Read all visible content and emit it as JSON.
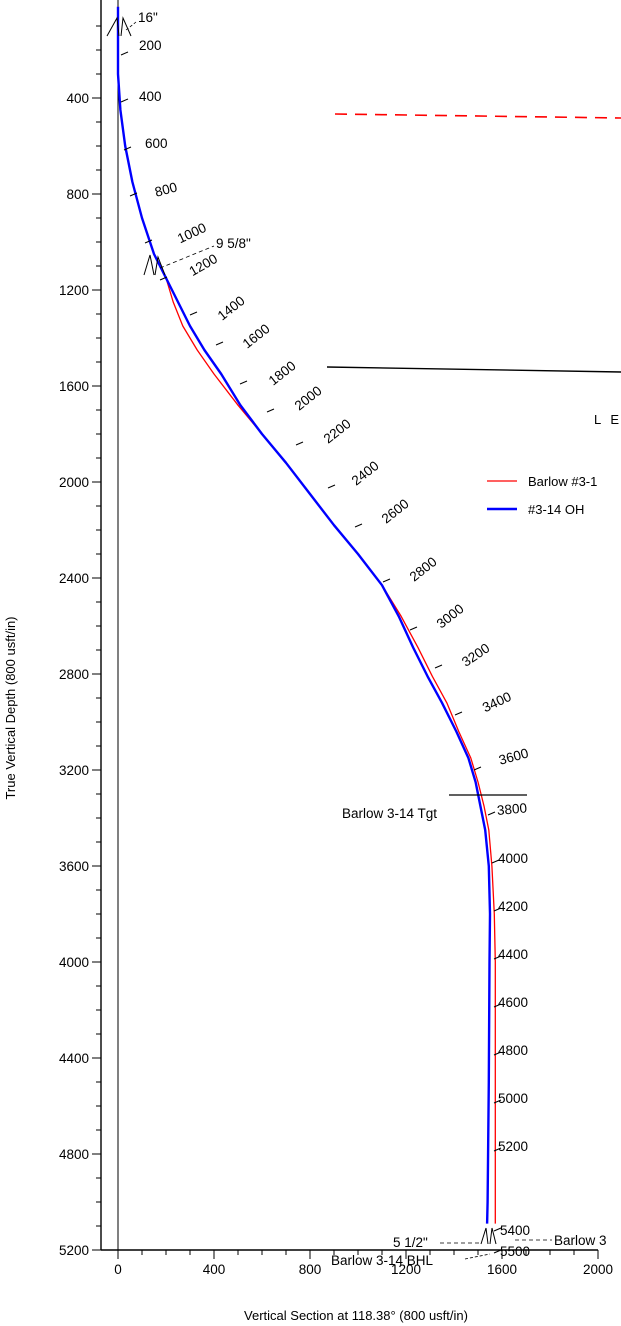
{
  "chart_data": {
    "type": "line",
    "xlabel": "Vertical Section at 118.38° (800 usft/in)",
    "ylabel": "True Vertical Depth (800 usft/in)",
    "xlim": [
      -70,
      2000
    ],
    "ylim": [
      5200,
      100
    ],
    "x_ticks": [
      0,
      400,
      800,
      1200,
      1600,
      2000
    ],
    "y_ticks": [
      400,
      800,
      1200,
      1600,
      2000,
      2400,
      2800,
      3200,
      3600,
      4000,
      4400,
      4800,
      5200
    ],
    "legend": {
      "title": "L E",
      "entries": [
        {
          "label": "Barlow #3-1",
          "color": "#ff0000"
        },
        {
          "label": "#3-14 OH",
          "color": "#0000ff"
        }
      ]
    },
    "series": [
      {
        "name": "Barlow #3-1",
        "color": "#ff0000",
        "points": [
          [
            0,
            20
          ],
          [
            0,
            150
          ],
          [
            0,
            300
          ],
          [
            10,
            450
          ],
          [
            30,
            600
          ],
          [
            60,
            750
          ],
          [
            100,
            900
          ],
          [
            150,
            1050
          ],
          [
            200,
            1150
          ],
          [
            230,
            1250
          ],
          [
            270,
            1350
          ],
          [
            330,
            1450
          ],
          [
            400,
            1550
          ],
          [
            500,
            1680
          ],
          [
            600,
            1800
          ],
          [
            700,
            1920
          ],
          [
            800,
            2050
          ],
          [
            900,
            2180
          ],
          [
            1000,
            2300
          ],
          [
            1100,
            2430
          ],
          [
            1180,
            2560
          ],
          [
            1250,
            2690
          ],
          [
            1310,
            2810
          ],
          [
            1370,
            2920
          ],
          [
            1420,
            3040
          ],
          [
            1470,
            3150
          ],
          [
            1500,
            3250
          ],
          [
            1525,
            3350
          ],
          [
            1545,
            3450
          ],
          [
            1558,
            3600
          ],
          [
            1568,
            3800
          ],
          [
            1572,
            4000
          ],
          [
            1572,
            4500
          ],
          [
            1572,
            5000
          ],
          [
            1572,
            5090
          ]
        ]
      },
      {
        "name": "#3-14 OH",
        "color": "#0000ff",
        "points": [
          [
            0,
            20
          ],
          [
            0,
            150
          ],
          [
            0,
            300
          ],
          [
            10,
            450
          ],
          [
            30,
            600
          ],
          [
            60,
            750
          ],
          [
            100,
            900
          ],
          [
            150,
            1050
          ],
          [
            200,
            1150
          ],
          [
            250,
            1250
          ],
          [
            300,
            1350
          ],
          [
            360,
            1450
          ],
          [
            430,
            1550
          ],
          [
            510,
            1680
          ],
          [
            600,
            1800
          ],
          [
            700,
            1920
          ],
          [
            800,
            2050
          ],
          [
            900,
            2180
          ],
          [
            1000,
            2300
          ],
          [
            1100,
            2430
          ],
          [
            1170,
            2560
          ],
          [
            1230,
            2690
          ],
          [
            1290,
            2810
          ],
          [
            1350,
            2920
          ],
          [
            1410,
            3040
          ],
          [
            1460,
            3150
          ],
          [
            1490,
            3250
          ],
          [
            1510,
            3350
          ],
          [
            1530,
            3450
          ],
          [
            1545,
            3600
          ],
          [
            1550,
            3800
          ],
          [
            1548,
            4000
          ],
          [
            1545,
            4500
          ],
          [
            1540,
            5000
          ],
          [
            1538,
            5090
          ]
        ]
      }
    ],
    "md_labels": [
      "200",
      "400",
      "600",
      "800",
      "1000",
      "1200",
      "1400",
      "1600",
      "1800",
      "2000",
      "2200",
      "2400",
      "2600",
      "2800",
      "3000",
      "3200",
      "3400",
      "3600",
      "3800",
      "4000",
      "4200",
      "4400",
      "4600",
      "4800",
      "5000",
      "5200",
      "5400",
      "5500"
    ],
    "annotations": {
      "casing_16": "16\"",
      "casing_958": "9 5/8\"",
      "casing_512": "5 1/2\"",
      "target": "Barlow 3-14 Tgt",
      "bhl": "Barlow 3-14 BHL",
      "bhl_right": "Barlow 3"
    }
  }
}
